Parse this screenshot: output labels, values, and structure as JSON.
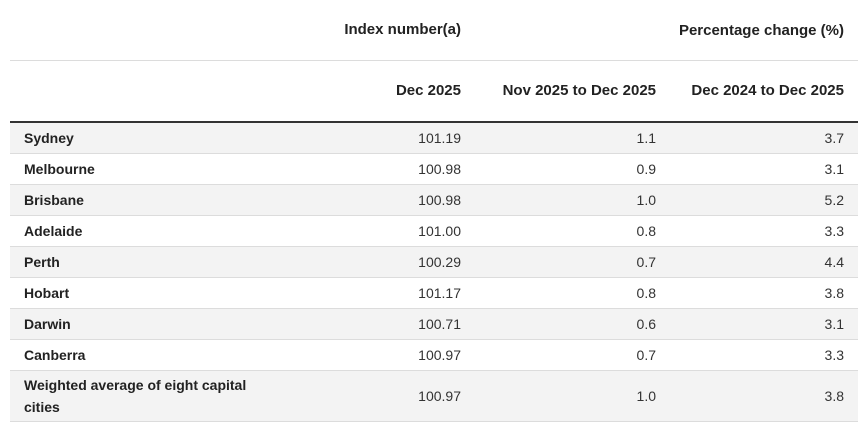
{
  "table": {
    "header": {
      "index_group": "Index number(a)",
      "pct_group": "Percentage change (%)",
      "col_index": "Dec 2025",
      "col_month": "Nov 2025 to Dec 2025",
      "col_year": "Dec 2024 to Dec 2025"
    },
    "rows": [
      {
        "region": "Sydney",
        "index": "101.19",
        "month": "1.1",
        "year": "3.7"
      },
      {
        "region": "Melbourne",
        "index": "100.98",
        "month": "0.9",
        "year": "3.1"
      },
      {
        "region": "Brisbane",
        "index": "100.98",
        "month": "1.0",
        "year": "5.2"
      },
      {
        "region": "Adelaide",
        "index": "101.00",
        "month": "0.8",
        "year": "3.3"
      },
      {
        "region": "Perth",
        "index": "100.29",
        "month": "0.7",
        "year": "4.4"
      },
      {
        "region": "Hobart",
        "index": "101.17",
        "month": "0.8",
        "year": "3.8"
      },
      {
        "region": "Darwin",
        "index": "100.71",
        "month": "0.6",
        "year": "3.1"
      },
      {
        "region": "Canberra",
        "index": "100.97",
        "month": "0.7",
        "year": "3.3"
      },
      {
        "region": "Weighted average of eight capital cities",
        "index": "100.97",
        "month": "1.0",
        "year": "3.8"
      }
    ]
  }
}
